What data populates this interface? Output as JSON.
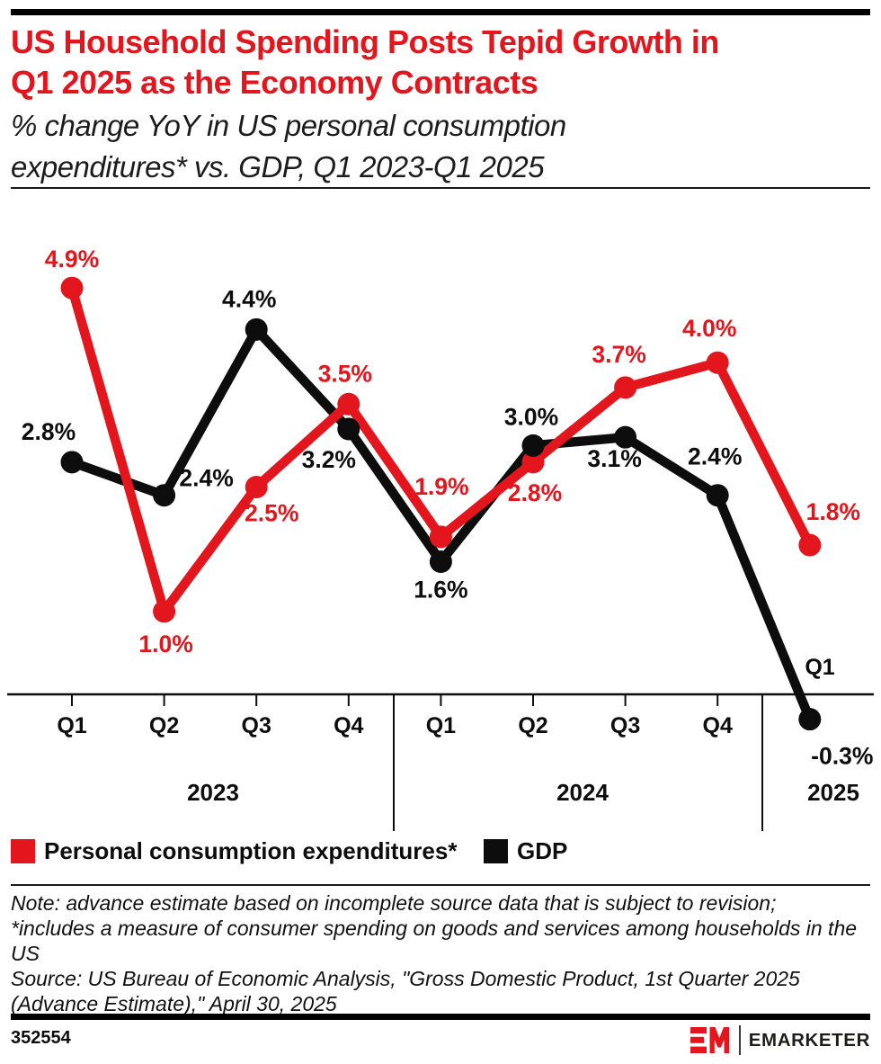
{
  "header": {
    "title_lines": [
      "US Household Spending Posts Tepid Growth in",
      "Q1 2025 as the Economy Contracts"
    ],
    "subtitle_lines": [
      "% change YoY in US personal consumption",
      "expenditures* vs. GDP, Q1 2023-Q1 2025"
    ],
    "accent_color": "#e3151d"
  },
  "chart_data": {
    "type": "line",
    "title": "US Household Spending Posts Tepid Growth in Q1 2025 as the Economy Contracts",
    "subtitle": "% change YoY in US personal consumption expenditures* vs. GDP, Q1 2023-Q1 2025",
    "unit": "% change YoY",
    "categories": [
      "Q1 2023",
      "Q2 2023",
      "Q3 2023",
      "Q4 2023",
      "Q1 2024",
      "Q2 2024",
      "Q3 2024",
      "Q4 2024",
      "Q1 2025"
    ],
    "x_tick_labels": [
      "Q1",
      "Q2",
      "Q3",
      "Q4",
      "Q1",
      "Q2",
      "Q3",
      "Q4",
      "Q1"
    ],
    "year_groups": [
      {
        "label": "2023",
        "quarters": [
          "Q1",
          "Q2",
          "Q3",
          "Q4"
        ]
      },
      {
        "label": "2024",
        "quarters": [
          "Q1",
          "Q2",
          "Q3",
          "Q4"
        ]
      },
      {
        "label": "2025",
        "quarters": [
          "Q1"
        ]
      }
    ],
    "ylim": [
      -0.6,
      5.3
    ],
    "grid": false,
    "legend_position": "bottom-left",
    "series": [
      {
        "name": "GDP",
        "color": "#0d0d0d",
        "values": [
          2.8,
          2.4,
          4.4,
          3.2,
          1.6,
          3.0,
          3.1,
          2.4,
          -0.3
        ],
        "point_labels": [
          "2.8%",
          "2.4%",
          "4.4%",
          "3.2%",
          "1.6%",
          "3.0%",
          "3.1%",
          "2.4%",
          "-0.3%"
        ],
        "label_offsets": [
          [
            -26,
            -34
          ],
          [
            47,
            -19
          ],
          [
            -8,
            -34
          ],
          [
            -22,
            34
          ],
          [
            0,
            31
          ],
          [
            -2,
            -32
          ],
          [
            -12,
            24
          ],
          [
            -3,
            -43
          ],
          [
            36,
            41
          ]
        ]
      },
      {
        "name": "Personal consumption expenditures*",
        "color": "#e3151d",
        "values": [
          4.9,
          1.0,
          2.5,
          3.5,
          1.9,
          2.8,
          3.7,
          4.0,
          1.8
        ],
        "point_labels": [
          "4.9%",
          "1.0%",
          "2.5%",
          "3.5%",
          "1.9%",
          "2.8%",
          "3.7%",
          "4.0%",
          "1.8%"
        ],
        "label_offsets": [
          [
            0,
            -32
          ],
          [
            2,
            36
          ],
          [
            17,
            29
          ],
          [
            -4,
            -34
          ],
          [
            1,
            -56
          ],
          [
            2,
            34
          ],
          [
            -7,
            -37
          ],
          [
            -9,
            -38
          ],
          [
            26,
            -37
          ]
        ]
      }
    ]
  },
  "legend": {
    "items": [
      {
        "label": "Personal consumption expenditures*",
        "color": "#e3151d"
      },
      {
        "label": "GDP",
        "color": "#0d0d0d"
      }
    ]
  },
  "notes": {
    "note_lines": [
      "Note: advance estimate based on incomplete source data that is subject to revision;",
      "*includes a measure of consumer spending on goods and services among households in the",
      "US"
    ],
    "source_lines": [
      "Source: US Bureau of Economic Analysis, \"Gross Domestic Product, 1st Quarter 2025",
      "(Advance Estimate),\" April 30, 2025"
    ]
  },
  "footer": {
    "chart_id": "352554",
    "brand_mark": "EM",
    "brand_name": "EMARKETER"
  }
}
